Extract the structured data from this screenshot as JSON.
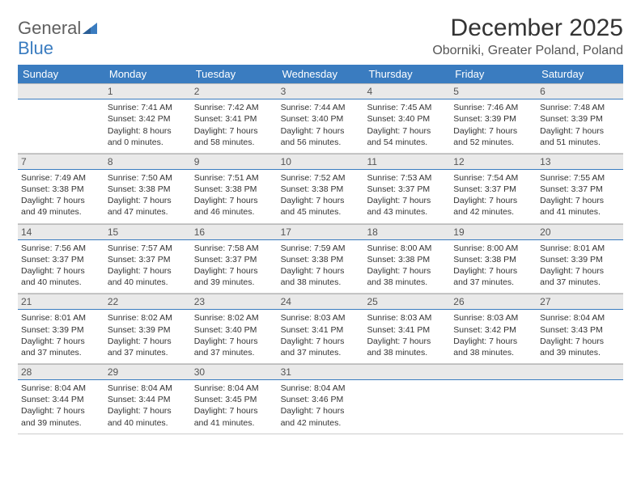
{
  "brand": {
    "word1": "General",
    "word2": "Blue",
    "text_color_top": "#606060",
    "text_color_bot": "#3a7cc0",
    "mark_color": "#3a7cc0"
  },
  "title": "December 2025",
  "location": "Oborniki, Greater Poland, Poland",
  "colors": {
    "header_bg": "#3a7cc0",
    "header_text": "#ffffff",
    "daynum_bg": "#e9e9e9",
    "daynum_border_top": "#bbbbbb",
    "daynum_border_bot": "#3a7cc0",
    "body_text": "#333333",
    "page_bg": "#ffffff"
  },
  "typography": {
    "title_fontsize": 30,
    "location_fontsize": 16,
    "dayheader_fontsize": 13,
    "daynum_fontsize": 12,
    "cell_fontsize": 10.5
  },
  "day_names": [
    "Sunday",
    "Monday",
    "Tuesday",
    "Wednesday",
    "Thursday",
    "Friday",
    "Saturday"
  ],
  "first_weekday_index": 1,
  "weeks": [
    [
      null,
      {
        "n": "1",
        "sunrise": "Sunrise: 7:41 AM",
        "sunset": "Sunset: 3:42 PM",
        "day1": "Daylight: 8 hours",
        "day2": "and 0 minutes."
      },
      {
        "n": "2",
        "sunrise": "Sunrise: 7:42 AM",
        "sunset": "Sunset: 3:41 PM",
        "day1": "Daylight: 7 hours",
        "day2": "and 58 minutes."
      },
      {
        "n": "3",
        "sunrise": "Sunrise: 7:44 AM",
        "sunset": "Sunset: 3:40 PM",
        "day1": "Daylight: 7 hours",
        "day2": "and 56 minutes."
      },
      {
        "n": "4",
        "sunrise": "Sunrise: 7:45 AM",
        "sunset": "Sunset: 3:40 PM",
        "day1": "Daylight: 7 hours",
        "day2": "and 54 minutes."
      },
      {
        "n": "5",
        "sunrise": "Sunrise: 7:46 AM",
        "sunset": "Sunset: 3:39 PM",
        "day1": "Daylight: 7 hours",
        "day2": "and 52 minutes."
      },
      {
        "n": "6",
        "sunrise": "Sunrise: 7:48 AM",
        "sunset": "Sunset: 3:39 PM",
        "day1": "Daylight: 7 hours",
        "day2": "and 51 minutes."
      }
    ],
    [
      {
        "n": "7",
        "sunrise": "Sunrise: 7:49 AM",
        "sunset": "Sunset: 3:38 PM",
        "day1": "Daylight: 7 hours",
        "day2": "and 49 minutes."
      },
      {
        "n": "8",
        "sunrise": "Sunrise: 7:50 AM",
        "sunset": "Sunset: 3:38 PM",
        "day1": "Daylight: 7 hours",
        "day2": "and 47 minutes."
      },
      {
        "n": "9",
        "sunrise": "Sunrise: 7:51 AM",
        "sunset": "Sunset: 3:38 PM",
        "day1": "Daylight: 7 hours",
        "day2": "and 46 minutes."
      },
      {
        "n": "10",
        "sunrise": "Sunrise: 7:52 AM",
        "sunset": "Sunset: 3:38 PM",
        "day1": "Daylight: 7 hours",
        "day2": "and 45 minutes."
      },
      {
        "n": "11",
        "sunrise": "Sunrise: 7:53 AM",
        "sunset": "Sunset: 3:37 PM",
        "day1": "Daylight: 7 hours",
        "day2": "and 43 minutes."
      },
      {
        "n": "12",
        "sunrise": "Sunrise: 7:54 AM",
        "sunset": "Sunset: 3:37 PM",
        "day1": "Daylight: 7 hours",
        "day2": "and 42 minutes."
      },
      {
        "n": "13",
        "sunrise": "Sunrise: 7:55 AM",
        "sunset": "Sunset: 3:37 PM",
        "day1": "Daylight: 7 hours",
        "day2": "and 41 minutes."
      }
    ],
    [
      {
        "n": "14",
        "sunrise": "Sunrise: 7:56 AM",
        "sunset": "Sunset: 3:37 PM",
        "day1": "Daylight: 7 hours",
        "day2": "and 40 minutes."
      },
      {
        "n": "15",
        "sunrise": "Sunrise: 7:57 AM",
        "sunset": "Sunset: 3:37 PM",
        "day1": "Daylight: 7 hours",
        "day2": "and 40 minutes."
      },
      {
        "n": "16",
        "sunrise": "Sunrise: 7:58 AM",
        "sunset": "Sunset: 3:37 PM",
        "day1": "Daylight: 7 hours",
        "day2": "and 39 minutes."
      },
      {
        "n": "17",
        "sunrise": "Sunrise: 7:59 AM",
        "sunset": "Sunset: 3:38 PM",
        "day1": "Daylight: 7 hours",
        "day2": "and 38 minutes."
      },
      {
        "n": "18",
        "sunrise": "Sunrise: 8:00 AM",
        "sunset": "Sunset: 3:38 PM",
        "day1": "Daylight: 7 hours",
        "day2": "and 38 minutes."
      },
      {
        "n": "19",
        "sunrise": "Sunrise: 8:00 AM",
        "sunset": "Sunset: 3:38 PM",
        "day1": "Daylight: 7 hours",
        "day2": "and 37 minutes."
      },
      {
        "n": "20",
        "sunrise": "Sunrise: 8:01 AM",
        "sunset": "Sunset: 3:39 PM",
        "day1": "Daylight: 7 hours",
        "day2": "and 37 minutes."
      }
    ],
    [
      {
        "n": "21",
        "sunrise": "Sunrise: 8:01 AM",
        "sunset": "Sunset: 3:39 PM",
        "day1": "Daylight: 7 hours",
        "day2": "and 37 minutes."
      },
      {
        "n": "22",
        "sunrise": "Sunrise: 8:02 AM",
        "sunset": "Sunset: 3:39 PM",
        "day1": "Daylight: 7 hours",
        "day2": "and 37 minutes."
      },
      {
        "n": "23",
        "sunrise": "Sunrise: 8:02 AM",
        "sunset": "Sunset: 3:40 PM",
        "day1": "Daylight: 7 hours",
        "day2": "and 37 minutes."
      },
      {
        "n": "24",
        "sunrise": "Sunrise: 8:03 AM",
        "sunset": "Sunset: 3:41 PM",
        "day1": "Daylight: 7 hours",
        "day2": "and 37 minutes."
      },
      {
        "n": "25",
        "sunrise": "Sunrise: 8:03 AM",
        "sunset": "Sunset: 3:41 PM",
        "day1": "Daylight: 7 hours",
        "day2": "and 38 minutes."
      },
      {
        "n": "26",
        "sunrise": "Sunrise: 8:03 AM",
        "sunset": "Sunset: 3:42 PM",
        "day1": "Daylight: 7 hours",
        "day2": "and 38 minutes."
      },
      {
        "n": "27",
        "sunrise": "Sunrise: 8:04 AM",
        "sunset": "Sunset: 3:43 PM",
        "day1": "Daylight: 7 hours",
        "day2": "and 39 minutes."
      }
    ],
    [
      {
        "n": "28",
        "sunrise": "Sunrise: 8:04 AM",
        "sunset": "Sunset: 3:44 PM",
        "day1": "Daylight: 7 hours",
        "day2": "and 39 minutes."
      },
      {
        "n": "29",
        "sunrise": "Sunrise: 8:04 AM",
        "sunset": "Sunset: 3:44 PM",
        "day1": "Daylight: 7 hours",
        "day2": "and 40 minutes."
      },
      {
        "n": "30",
        "sunrise": "Sunrise: 8:04 AM",
        "sunset": "Sunset: 3:45 PM",
        "day1": "Daylight: 7 hours",
        "day2": "and 41 minutes."
      },
      {
        "n": "31",
        "sunrise": "Sunrise: 8:04 AM",
        "sunset": "Sunset: 3:46 PM",
        "day1": "Daylight: 7 hours",
        "day2": "and 42 minutes."
      },
      null,
      null,
      null
    ]
  ]
}
